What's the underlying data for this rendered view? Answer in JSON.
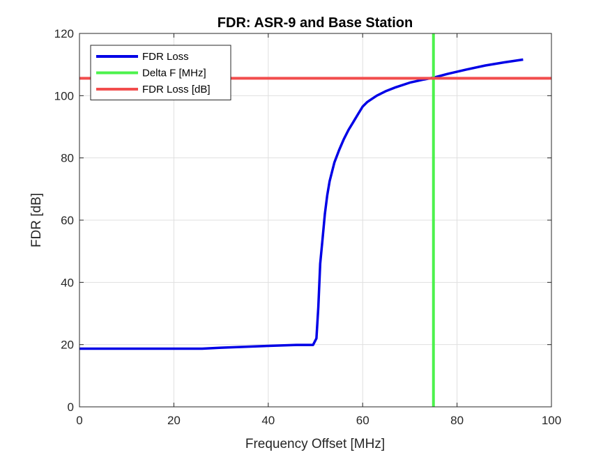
{
  "chart_data": {
    "type": "line",
    "title": "FDR: ASR-9 and Base Station",
    "xlabel": "Frequency Offset [MHz]",
    "ylabel": "FDR [dB]",
    "xlim": [
      0,
      100
    ],
    "ylim": [
      0,
      120
    ],
    "xticks": [
      0,
      20,
      40,
      60,
      80,
      100
    ],
    "yticks": [
      0,
      20,
      40,
      60,
      80,
      100,
      120
    ],
    "xtick_labels": [
      "0",
      "20",
      "40",
      "60",
      "80",
      "100"
    ],
    "ytick_labels": [
      "0",
      "20",
      "40",
      "60",
      "80",
      "100",
      "120"
    ],
    "grid": true,
    "legend_position": "top-left",
    "series": [
      {
        "name": "FDR Loss",
        "kind": "curve",
        "color": "#0000e6",
        "x": [
          0,
          10,
          20,
          26,
          30,
          40,
          46,
          49.5,
          50.2,
          50.6,
          51,
          51.5,
          52,
          52.5,
          53,
          54,
          55,
          56,
          57,
          58,
          59,
          60,
          61,
          62,
          63,
          65,
          67,
          70,
          73,
          75,
          78,
          82,
          86,
          90,
          94
        ],
        "y": [
          18.7,
          18.7,
          18.7,
          18.7,
          19.0,
          19.6,
          19.9,
          19.9,
          22.0,
          32.0,
          46.0,
          54.0,
          62.0,
          68.0,
          72.5,
          78.5,
          82.5,
          86.0,
          89.0,
          91.5,
          94.0,
          96.5,
          98.0,
          99.0,
          100.0,
          101.5,
          102.7,
          104.2,
          105.2,
          105.8,
          107.0,
          108.4,
          109.7,
          110.7,
          111.6
        ]
      },
      {
        "name": "Delta F [MHz]",
        "kind": "vline",
        "color": "#4df24d",
        "x": 75
      },
      {
        "name": "FDR Loss [dB]",
        "kind": "hline",
        "color": "#f24d4d",
        "y": 105.6
      }
    ]
  }
}
